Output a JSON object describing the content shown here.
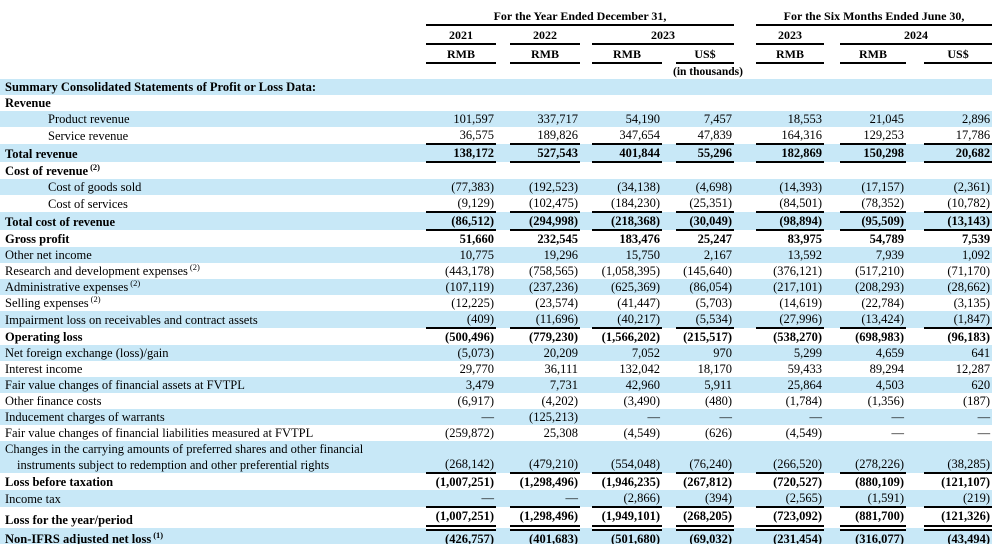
{
  "page": {
    "background_color": "#ffffff",
    "highlight_color": "#c8e8f7"
  },
  "table": {
    "header": {
      "annual_group": "For the Year Ended December 31,",
      "interim_group": "For the Six Months Ended June 30,",
      "years": [
        "2021",
        "2022",
        "2023",
        "2023",
        "2024"
      ],
      "currencies": [
        "RMB",
        "RMB",
        "RMB",
        "US$",
        "RMB",
        "RMB",
        "US$"
      ],
      "unit_note": "(in thousands)"
    },
    "rows": [
      {
        "label": "Summary Consolidated Statements of Profit or Loss Data:",
        "bold": true,
        "highlight": true,
        "values": null
      },
      {
        "label": "Revenue",
        "bold": true,
        "highlight": false,
        "values": null
      },
      {
        "label": "Product revenue",
        "indent": true,
        "highlight": true,
        "values": [
          "101,597",
          "337,717",
          "54,190",
          "7,457",
          "18,553",
          "21,045",
          "2,896"
        ]
      },
      {
        "label": "Service revenue",
        "indent": true,
        "highlight": false,
        "underline": "single",
        "values": [
          "36,575",
          "189,826",
          "347,654",
          "47,839",
          "164,316",
          "129,253",
          "17,786"
        ]
      },
      {
        "label": "Total revenue",
        "bold": true,
        "highlight": true,
        "underline": "single",
        "values": [
          "138,172",
          "527,543",
          "401,844",
          "55,296",
          "182,869",
          "150,298",
          "20,682"
        ]
      },
      {
        "label": "Cost of revenue",
        "sup": "(2)",
        "bold": true,
        "highlight": false,
        "values": null
      },
      {
        "label": "Cost of goods sold",
        "indent": true,
        "highlight": true,
        "values": [
          "(77,383)",
          "(192,523)",
          "(34,138)",
          "(4,698)",
          "(14,393)",
          "(17,157)",
          "(2,361)"
        ]
      },
      {
        "label": "Cost of services",
        "indent": true,
        "highlight": false,
        "underline": "single",
        "values": [
          "(9,129)",
          "(102,475)",
          "(184,230)",
          "(25,351)",
          "(84,501)",
          "(78,352)",
          "(10,782)"
        ]
      },
      {
        "label": "Total cost of revenue",
        "bold": true,
        "highlight": true,
        "underline": "single",
        "values": [
          "(86,512)",
          "(294,998)",
          "(218,368)",
          "(30,049)",
          "(98,894)",
          "(95,509)",
          "(13,143)"
        ]
      },
      {
        "label": "Gross profit",
        "bold": true,
        "highlight": false,
        "values": [
          "51,660",
          "232,545",
          "183,476",
          "25,247",
          "83,975",
          "54,789",
          "7,539"
        ]
      },
      {
        "label": "Other net income",
        "highlight": true,
        "values": [
          "10,775",
          "19,296",
          "15,750",
          "2,167",
          "13,592",
          "7,939",
          "1,092"
        ]
      },
      {
        "label": "Research and development expenses",
        "sup": "(2)",
        "highlight": false,
        "values": [
          "(443,178)",
          "(758,565)",
          "(1,058,395)",
          "(145,640)",
          "(376,121)",
          "(517,210)",
          "(71,170)"
        ]
      },
      {
        "label": "Administrative expenses",
        "sup": "(2)",
        "highlight": true,
        "values": [
          "(107,119)",
          "(237,236)",
          "(625,369)",
          "(86,054)",
          "(217,101)",
          "(208,293)",
          "(28,662)"
        ]
      },
      {
        "label": "Selling expenses",
        "sup": "(2)",
        "highlight": false,
        "values": [
          "(12,225)",
          "(23,574)",
          "(41,447)",
          "(5,703)",
          "(14,619)",
          "(22,784)",
          "(3,135)"
        ]
      },
      {
        "label": "Impairment loss on receivables and contract assets",
        "highlight": true,
        "underline": "single",
        "values": [
          "(409)",
          "(11,696)",
          "(40,217)",
          "(5,534)",
          "(27,996)",
          "(13,424)",
          "(1,847)"
        ]
      },
      {
        "label": "Operating loss",
        "bold": true,
        "highlight": false,
        "values": [
          "(500,496)",
          "(779,230)",
          "(1,566,202)",
          "(215,517)",
          "(538,270)",
          "(698,983)",
          "(96,183)"
        ]
      },
      {
        "label": "Net foreign exchange (loss)/gain",
        "highlight": true,
        "values": [
          "(5,073)",
          "20,209",
          "7,052",
          "970",
          "5,299",
          "4,659",
          "641"
        ]
      },
      {
        "label": "Interest income",
        "highlight": false,
        "values": [
          "29,770",
          "36,111",
          "132,042",
          "18,170",
          "59,433",
          "89,294",
          "12,287"
        ]
      },
      {
        "label": "Fair value changes of financial assets at FVTPL",
        "highlight": true,
        "values": [
          "3,479",
          "7,731",
          "42,960",
          "5,911",
          "25,864",
          "4,503",
          "620"
        ]
      },
      {
        "label": "Other finance costs",
        "highlight": false,
        "values": [
          "(6,917)",
          "(4,202)",
          "(3,490)",
          "(480)",
          "(1,784)",
          "(1,356)",
          "(187)"
        ]
      },
      {
        "label": "Inducement charges of warrants",
        "highlight": true,
        "values": [
          "—",
          "(125,213)",
          "—",
          "—",
          "—",
          "—",
          "—"
        ]
      },
      {
        "label": "Fair value changes of financial liabilities measured at FVTPL",
        "highlight": false,
        "values": [
          "(259,872)",
          "25,308",
          "(4,549)",
          "(626)",
          "(4,549)",
          "—",
          "—"
        ]
      },
      {
        "label": "Changes in the carrying amounts of preferred shares and other financial instruments subject to redemption and other preferential rights",
        "wrap": true,
        "highlight": true,
        "underline": "single",
        "values": [
          "(268,142)",
          "(479,210)",
          "(554,048)",
          "(76,240)",
          "(266,520)",
          "(278,226)",
          "(38,285)"
        ]
      },
      {
        "label": "Loss before taxation",
        "bold": true,
        "highlight": false,
        "values": [
          "(1,007,251)",
          "(1,298,496)",
          "(1,946,235)",
          "(267,812)",
          "(720,527)",
          "(880,109)",
          "(121,107)"
        ]
      },
      {
        "label": "Income tax",
        "highlight": true,
        "underline": "single",
        "values": [
          "—",
          "—",
          "(2,866)",
          "(394)",
          "(2,565)",
          "(1,591)",
          "(219)"
        ]
      },
      {
        "label": "Loss for the year/period",
        "bold": true,
        "highlight": false,
        "underline": "double",
        "values": [
          "(1,007,251)",
          "(1,298,496)",
          "(1,949,101)",
          "(268,205)",
          "(723,092)",
          "(881,700)",
          "(121,326)"
        ]
      },
      {
        "label": "Non-IFRS adjusted net loss",
        "sup": "(1)",
        "bold": true,
        "highlight": true,
        "values": [
          "(426,757)",
          "(401,683)",
          "(501,680)",
          "(69,032)",
          "(231,454)",
          "(316,077)",
          "(43,494)"
        ]
      }
    ]
  }
}
